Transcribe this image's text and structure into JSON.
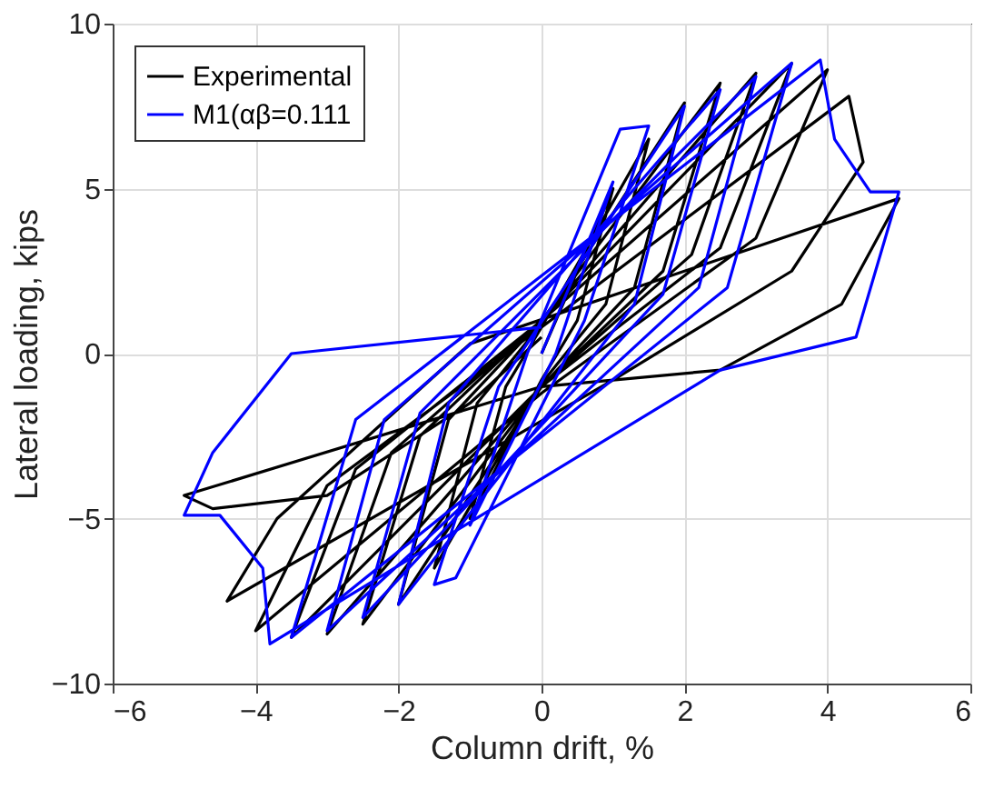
{
  "chart_data": {
    "type": "line",
    "xlabel": "Column drift, %",
    "ylabel": "Lateral loading, kips",
    "xlim": [
      -6,
      6
    ],
    "ylim": [
      -10,
      10
    ],
    "xticks": [
      -6,
      -4,
      -2,
      0,
      2,
      4,
      6
    ],
    "yticks": [
      -10,
      -5,
      0,
      5,
      10
    ],
    "grid": true,
    "legend": "top left",
    "line_style": "solid",
    "marker": "none",
    "series": [
      {
        "name": "Experimental",
        "color": "#000000",
        "x": [
          0,
          1,
          0.5,
          0,
          -1,
          -0.5,
          0,
          1.5,
          0.9,
          0,
          -1.5,
          -0.9,
          0,
          2,
          1.3,
          0,
          -2,
          -1.3,
          0,
          2.5,
          1.7,
          0,
          -2.5,
          -1.7,
          0,
          3,
          2.1,
          0,
          -3,
          -2.1,
          0,
          3.5,
          2.5,
          0,
          -3.5,
          -2.6,
          0,
          4,
          3,
          0,
          -4,
          -3,
          0,
          4.3,
          4.5,
          3.5,
          1,
          -4.4,
          -3.7,
          -1,
          5,
          4.2,
          2.5,
          0,
          -5,
          -4.6,
          -3,
          -1,
          0
        ],
        "values": [
          0,
          5,
          1,
          -0.8,
          -5,
          -1,
          0.8,
          6.5,
          1.5,
          -0.9,
          -6.5,
          -1.5,
          0.9,
          7.6,
          2,
          -1,
          -7.6,
          -2,
          1,
          8.2,
          2.5,
          -1,
          -8.2,
          -2.5,
          1,
          8.5,
          3,
          -1,
          -8.5,
          -3,
          1,
          8.8,
          3.2,
          -1,
          -8.6,
          -3.5,
          1,
          8.6,
          3.5,
          -1.2,
          -8.4,
          -4,
          0.8,
          7.8,
          5.8,
          2.5,
          -0.8,
          -7.5,
          -5,
          0.3,
          4.7,
          1.5,
          -0.5,
          -1,
          -4.3,
          -4.7,
          -4.3,
          -1.5,
          0.5
        ]
      },
      {
        "name": "M1(αβ=0.111",
        "color": "#0000ff",
        "x": [
          0,
          1,
          0.2,
          -1,
          -0.2,
          1.1,
          1.5,
          0.6,
          -1.2,
          -1.5,
          -0.6,
          2,
          1.3,
          -2,
          -1.3,
          2.5,
          1.7,
          -2.5,
          -1.7,
          3,
          2.2,
          -3,
          -2.2,
          3.5,
          2.6,
          -3.5,
          -2.6,
          3.9,
          4.1,
          4.6,
          5,
          4.4,
          2.5,
          -3.8,
          -3.9,
          -4.5,
          -5,
          -4.6,
          -3.5,
          0
        ],
        "values": [
          0,
          5.2,
          0,
          -5.2,
          0,
          6.8,
          6.9,
          1,
          -6.8,
          -7,
          -1,
          7.5,
          1.5,
          -7.6,
          -1.5,
          8,
          1.8,
          -8,
          -1.8,
          8.4,
          2,
          -8.4,
          -2,
          8.8,
          2,
          -8.6,
          -2,
          8.9,
          6.5,
          4.9,
          4.9,
          0.5,
          -0.5,
          -8.8,
          -6.5,
          -4.9,
          -4.9,
          -3,
          0,
          0.8
        ]
      }
    ]
  }
}
